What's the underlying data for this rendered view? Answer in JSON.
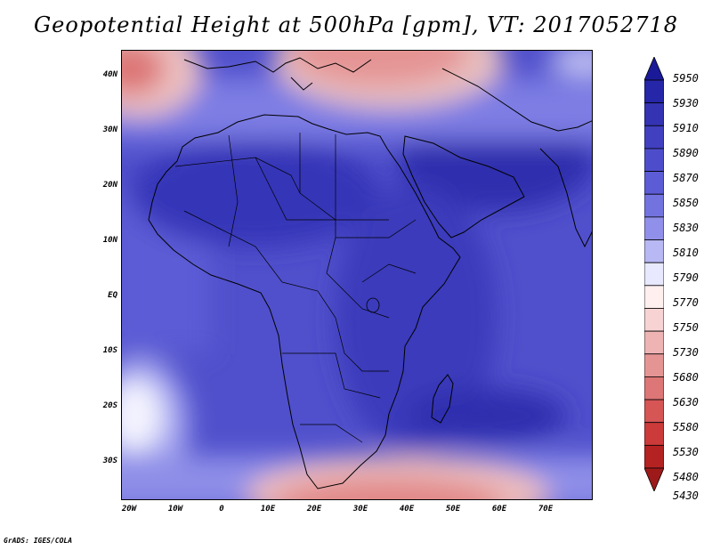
{
  "title": "Geopotential Height at 500hPa [gpm], VT: 2017052718",
  "footer": "GrADS: IGES/COLA",
  "map": {
    "lat_ticks": [
      "40N",
      "30N",
      "20N",
      "10N",
      "EQ",
      "10S",
      "20S",
      "30S"
    ],
    "lon_ticks": [
      "20W",
      "10W",
      "0",
      "10E",
      "20E",
      "30E",
      "40E",
      "50E",
      "60E",
      "70E"
    ]
  },
  "colorbar": {
    "levels": [
      "5950",
      "5930",
      "5910",
      "5890",
      "5870",
      "5850",
      "5830",
      "5810",
      "5790",
      "5770",
      "5750",
      "5730",
      "5680",
      "5630",
      "5580",
      "5530",
      "5480",
      "5430"
    ],
    "colors": [
      "#1a1a99",
      "#2626a8",
      "#3333b3",
      "#4040c0",
      "#4d4dcc",
      "#5c5cd6",
      "#7373e0",
      "#9090ea",
      "#b8b8f4",
      "#e8e8ff",
      "#ffefef",
      "#f7d3d3",
      "#eeb3b3",
      "#e59494",
      "#dd7676",
      "#d65555",
      "#cc3a3a",
      "#b52222",
      "#9e1a1a"
    ]
  }
}
